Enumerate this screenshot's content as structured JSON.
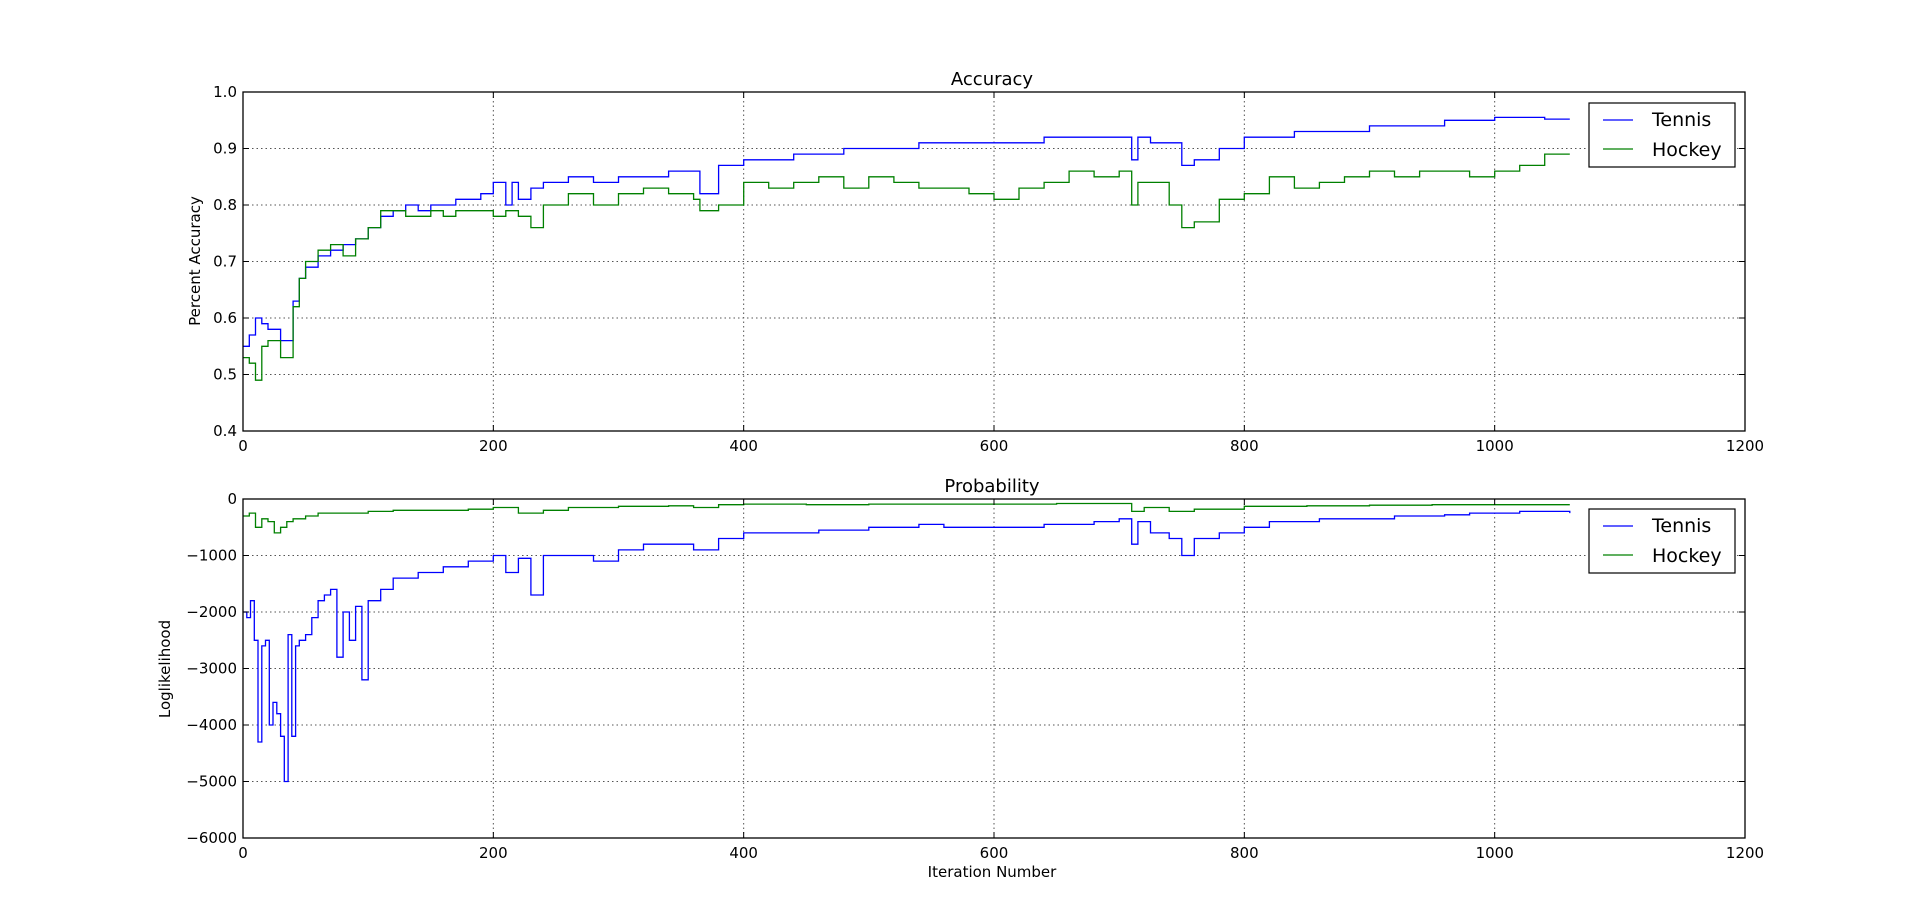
{
  "colors": {
    "tennis": "#0000ff",
    "hockey": "#008000",
    "background": "#ffffff"
  },
  "chart_data": [
    {
      "type": "line",
      "title": "Accuracy",
      "xlabel": "",
      "ylabel": "Percent Accuracy",
      "xlim": [
        0,
        1200
      ],
      "ylim": [
        0.4,
        1.0
      ],
      "xticks": [
        0,
        200,
        400,
        600,
        800,
        1000,
        1200
      ],
      "xtick_labels": [
        "0",
        "200",
        "400",
        "600",
        "800",
        "1000",
        "1200"
      ],
      "yticks": [
        0.4,
        0.5,
        0.6,
        0.7,
        0.8,
        0.9,
        1.0
      ],
      "ytick_labels": [
        "0.4",
        "0.5",
        "0.6",
        "0.7",
        "0.8",
        "0.9",
        "1.0"
      ],
      "grid": true,
      "legend": "top-right",
      "series": [
        {
          "name": "Tennis",
          "color": "#0000ff",
          "x": [
            0,
            5,
            10,
            15,
            20,
            30,
            40,
            45,
            50,
            60,
            70,
            80,
            90,
            100,
            110,
            120,
            130,
            140,
            150,
            160,
            170,
            180,
            190,
            200,
            210,
            215,
            220,
            230,
            240,
            260,
            280,
            300,
            320,
            340,
            360,
            365,
            380,
            400,
            420,
            440,
            460,
            480,
            500,
            520,
            540,
            560,
            580,
            600,
            620,
            640,
            660,
            680,
            700,
            710,
            715,
            725,
            740,
            750,
            760,
            780,
            800,
            820,
            840,
            860,
            880,
            900,
            920,
            940,
            960,
            980,
            1000,
            1020,
            1040,
            1060
          ],
          "y": [
            0.55,
            0.57,
            0.6,
            0.59,
            0.58,
            0.56,
            0.63,
            0.67,
            0.69,
            0.71,
            0.72,
            0.73,
            0.74,
            0.76,
            0.78,
            0.79,
            0.8,
            0.79,
            0.8,
            0.8,
            0.81,
            0.81,
            0.82,
            0.84,
            0.8,
            0.84,
            0.81,
            0.83,
            0.84,
            0.85,
            0.84,
            0.85,
            0.85,
            0.86,
            0.86,
            0.82,
            0.87,
            0.88,
            0.88,
            0.89,
            0.89,
            0.9,
            0.9,
            0.9,
            0.91,
            0.91,
            0.91,
            0.91,
            0.91,
            0.92,
            0.92,
            0.92,
            0.92,
            0.88,
            0.92,
            0.91,
            0.91,
            0.87,
            0.88,
            0.9,
            0.92,
            0.92,
            0.93,
            0.93,
            0.93,
            0.94,
            0.94,
            0.94,
            0.95,
            0.95,
            0.955,
            0.955,
            0.952,
            0.952
          ]
        },
        {
          "name": "Hockey",
          "color": "#008000",
          "x": [
            0,
            5,
            10,
            15,
            20,
            30,
            40,
            45,
            50,
            60,
            70,
            80,
            90,
            100,
            110,
            120,
            130,
            140,
            150,
            160,
            170,
            180,
            190,
            200,
            210,
            220,
            230,
            240,
            260,
            280,
            300,
            320,
            340,
            360,
            365,
            380,
            400,
            420,
            440,
            460,
            480,
            500,
            520,
            540,
            560,
            580,
            600,
            620,
            640,
            660,
            680,
            700,
            710,
            715,
            725,
            740,
            750,
            760,
            780,
            800,
            820,
            840,
            860,
            880,
            900,
            920,
            940,
            960,
            980,
            1000,
            1020,
            1040,
            1060
          ],
          "y": [
            0.53,
            0.52,
            0.49,
            0.55,
            0.56,
            0.53,
            0.62,
            0.67,
            0.7,
            0.72,
            0.73,
            0.71,
            0.74,
            0.76,
            0.79,
            0.79,
            0.78,
            0.78,
            0.79,
            0.78,
            0.79,
            0.79,
            0.79,
            0.78,
            0.79,
            0.78,
            0.76,
            0.8,
            0.82,
            0.8,
            0.82,
            0.83,
            0.82,
            0.81,
            0.79,
            0.8,
            0.84,
            0.83,
            0.84,
            0.85,
            0.83,
            0.85,
            0.84,
            0.83,
            0.83,
            0.82,
            0.81,
            0.83,
            0.84,
            0.86,
            0.85,
            0.86,
            0.8,
            0.84,
            0.84,
            0.8,
            0.76,
            0.77,
            0.81,
            0.82,
            0.85,
            0.83,
            0.84,
            0.85,
            0.86,
            0.85,
            0.86,
            0.86,
            0.85,
            0.86,
            0.87,
            0.89,
            0.89
          ]
        }
      ]
    },
    {
      "type": "line",
      "title": "Probability",
      "xlabel": "Iteration Number",
      "ylabel": "Loglikelihood",
      "xlim": [
        0,
        1200
      ],
      "ylim": [
        -6000,
        0
      ],
      "xticks": [
        0,
        200,
        400,
        600,
        800,
        1000,
        1200
      ],
      "xtick_labels": [
        "0",
        "200",
        "400",
        "600",
        "800",
        "1000",
        "1200"
      ],
      "yticks": [
        -6000,
        -5000,
        -4000,
        -3000,
        -2000,
        -1000,
        0
      ],
      "ytick_labels": [
        "−6000",
        "−5000",
        "−4000",
        "−3000",
        "−2000",
        "−1000",
        "0"
      ],
      "grid": true,
      "legend": "top-right",
      "series": [
        {
          "name": "Tennis",
          "color": "#0000ff",
          "x": [
            0,
            3,
            6,
            9,
            12,
            15,
            18,
            21,
            24,
            27,
            30,
            33,
            36,
            39,
            42,
            45,
            50,
            55,
            60,
            65,
            70,
            75,
            80,
            85,
            90,
            95,
            100,
            110,
            120,
            140,
            160,
            180,
            200,
            210,
            220,
            230,
            240,
            260,
            280,
            300,
            320,
            340,
            360,
            380,
            400,
            420,
            440,
            460,
            480,
            500,
            520,
            540,
            560,
            580,
            600,
            620,
            640,
            660,
            680,
            700,
            710,
            715,
            725,
            740,
            750,
            760,
            780,
            800,
            820,
            840,
            860,
            880,
            900,
            920,
            940,
            960,
            980,
            1000,
            1020,
            1040,
            1060
          ],
          "y": [
            -2000,
            -2100,
            -1800,
            -2500,
            -4300,
            -2600,
            -2500,
            -4000,
            -3600,
            -3800,
            -4200,
            -5000,
            -2400,
            -4200,
            -2600,
            -2500,
            -2400,
            -2100,
            -1800,
            -1700,
            -1600,
            -2800,
            -2000,
            -2500,
            -1900,
            -3200,
            -1800,
            -1600,
            -1400,
            -1300,
            -1200,
            -1100,
            -1000,
            -1300,
            -1050,
            -1700,
            -1000,
            -1000,
            -1100,
            -900,
            -800,
            -800,
            -900,
            -700,
            -600,
            -600,
            -600,
            -550,
            -550,
            -500,
            -500,
            -450,
            -500,
            -500,
            -500,
            -500,
            -450,
            -450,
            -400,
            -350,
            -800,
            -400,
            -600,
            -700,
            -1000,
            -700,
            -600,
            -500,
            -400,
            -400,
            -350,
            -350,
            -350,
            -300,
            -300,
            -280,
            -250,
            -250,
            -220,
            -220,
            -250
          ]
        },
        {
          "name": "Hockey",
          "color": "#008000",
          "x": [
            0,
            5,
            10,
            15,
            20,
            25,
            30,
            35,
            40,
            50,
            60,
            80,
            100,
            120,
            150,
            180,
            200,
            220,
            240,
            260,
            300,
            340,
            360,
            380,
            400,
            450,
            500,
            550,
            600,
            650,
            700,
            710,
            720,
            740,
            760,
            800,
            850,
            900,
            950,
            1000,
            1060
          ],
          "y": [
            -300,
            -250,
            -500,
            -350,
            -400,
            -600,
            -500,
            -400,
            -350,
            -300,
            -250,
            -250,
            -220,
            -200,
            -200,
            -180,
            -150,
            -250,
            -200,
            -150,
            -130,
            -120,
            -150,
            -100,
            -90,
            -100,
            -90,
            -90,
            -90,
            -80,
            -80,
            -220,
            -150,
            -220,
            -180,
            -130,
            -120,
            -110,
            -100,
            -100,
            -100
          ]
        }
      ]
    }
  ]
}
